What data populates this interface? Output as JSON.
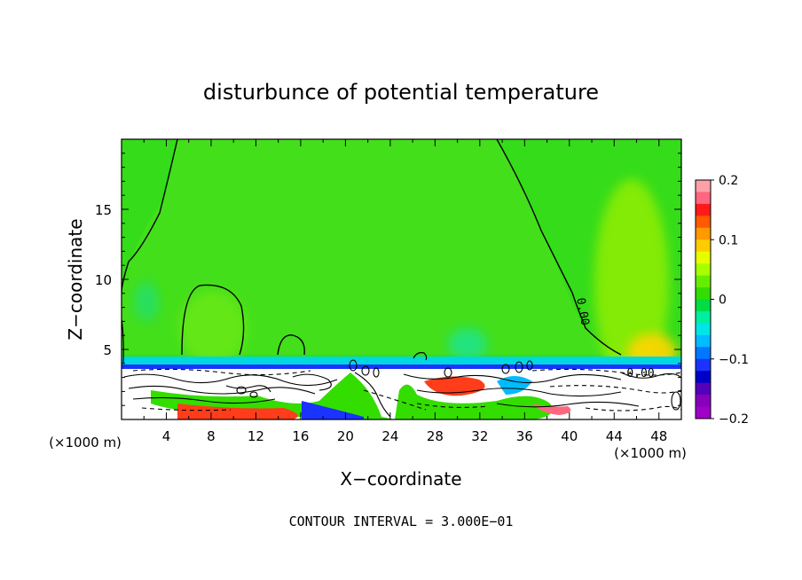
{
  "chart_data": {
    "type": "heatmap",
    "title": "disturbunce of potential temperature",
    "xlabel": "X−coordinate",
    "ylabel": "Z−coordinate",
    "x_unit_left": "(×1000 m)",
    "x_unit_right": "(×1000 m)",
    "footer": "CONTOUR INTERVAL = 3.000E−01",
    "xlim": [
      0,
      50
    ],
    "ylim": [
      0,
      20
    ],
    "x_ticks": [
      "4",
      "8",
      "12",
      "16",
      "20",
      "24",
      "28",
      "32",
      "36",
      "40",
      "44",
      "48"
    ],
    "x_tick_values": [
      4,
      8,
      12,
      16,
      20,
      24,
      28,
      32,
      36,
      40,
      44,
      48
    ],
    "y_ticks": [
      "5",
      "10",
      "15"
    ],
    "y_tick_values": [
      5,
      10,
      15
    ],
    "contour_labels": [
      "0.00",
      "0.00"
    ],
    "colorbar": {
      "range": [
        -0.2,
        0.2
      ],
      "tick_labels": [
        "0.2",
        "0.1",
        "0",
        "−0.1",
        "−0.2"
      ],
      "tick_values": [
        0.2,
        0.1,
        0,
        -0.1,
        -0.2
      ],
      "colors": [
        "#ff9fa8",
        "#ff6680",
        "#ff1a1a",
        "#ff5a00",
        "#ff9900",
        "#ffcc00",
        "#e6ff00",
        "#a8ff00",
        "#66ee00",
        "#33dd00",
        "#00dd44",
        "#00eea0",
        "#00e6e6",
        "#00bbff",
        "#0077ff",
        "#1a33ff",
        "#0000c8",
        "#5500bb",
        "#8800bb",
        "#a000c8"
      ]
    },
    "background_level": 0.0,
    "grid": false,
    "legend": "right colorbar"
  }
}
